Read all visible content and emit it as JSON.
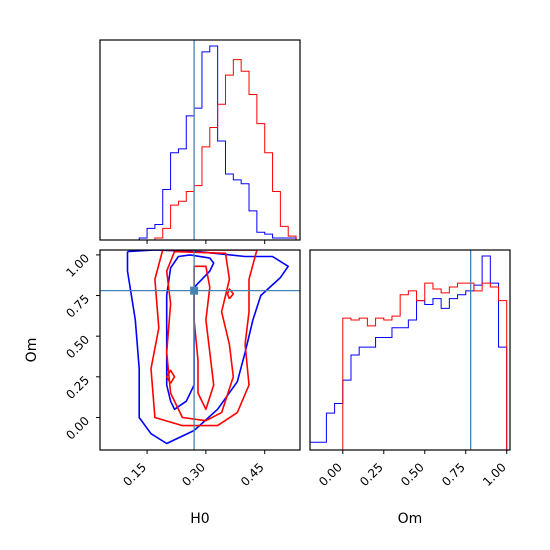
{
  "chart_data": {
    "type": "corner",
    "parameters": [
      "H0",
      "Om"
    ],
    "truth": {
      "H0": 0.27,
      "Om": 0.78
    },
    "colors": {
      "series_a": "#0000ff",
      "series_b": "#ff0000",
      "truth": "#4682b4"
    },
    "hist_H0": {
      "xlim": [
        0.03,
        0.54
      ],
      "bin_edges": [
        0.03,
        0.05,
        0.07,
        0.09,
        0.11,
        0.13,
        0.15,
        0.17,
        0.19,
        0.21,
        0.23,
        0.25,
        0.27,
        0.29,
        0.31,
        0.33,
        0.35,
        0.37,
        0.39,
        0.41,
        0.43,
        0.45,
        0.47,
        0.49,
        0.51,
        0.53
      ],
      "series": [
        {
          "color": "#0000ff",
          "counts": [
            0,
            0,
            0,
            0,
            0,
            0.01,
            0.06,
            0.08,
            0.26,
            0.45,
            0.47,
            0.64,
            0.68,
            0.97,
            1.0,
            0.51,
            0.34,
            0.31,
            0.29,
            0.15,
            0.04,
            0.03,
            0.01,
            0.01,
            0.01
          ]
        },
        {
          "color": "#ff0000",
          "counts": [
            0,
            0,
            0,
            0,
            0,
            0,
            0,
            0.01,
            0.06,
            0.18,
            0.2,
            0.25,
            0.28,
            0.48,
            0.58,
            0.7,
            0.85,
            0.93,
            0.87,
            0.75,
            0.6,
            0.45,
            0.25,
            0.07,
            0.02
          ]
        }
      ]
    },
    "hist_Om": {
      "xlim": [
        -0.2,
        1.02
      ],
      "xticks": [
        "0.00",
        "0.25",
        "0.50",
        "0.75",
        "1.00"
      ],
      "xtick_values": [
        0,
        0.25,
        0.5,
        0.75,
        1.0
      ],
      "bin_edges": [
        -0.2,
        -0.15,
        -0.1,
        -0.05,
        0.0,
        0.05,
        0.1,
        0.15,
        0.2,
        0.25,
        0.3,
        0.35,
        0.4,
        0.45,
        0.5,
        0.55,
        0.6,
        0.65,
        0.7,
        0.75,
        0.8,
        0.85,
        0.9,
        0.95,
        1.0
      ],
      "series": [
        {
          "color": "#0000ff",
          "counts": [
            0.04,
            0.04,
            0.19,
            0.24,
            0.36,
            0.49,
            0.53,
            0.53,
            0.58,
            0.58,
            0.63,
            0.63,
            0.67,
            0.77,
            0.75,
            0.78,
            0.73,
            0.78,
            0.8,
            0.82,
            0.85,
            1.0,
            0.86,
            0.53
          ]
        },
        {
          "color": "#ff0000",
          "counts": [
            0,
            0,
            0,
            0,
            0.68,
            0.67,
            0.68,
            0.64,
            0.68,
            0.67,
            0.69,
            0.8,
            0.82,
            0.77,
            0.86,
            0.83,
            0.81,
            0.84,
            0.86,
            0.86,
            0.82,
            0.86,
            0.84,
            0.77
          ]
        }
      ]
    },
    "contour": {
      "xlabel": "H0",
      "ylabel": "Om",
      "xlim": [
        0.03,
        0.54
      ],
      "ylim": [
        -0.2,
        1.03
      ],
      "xticks": [
        "0.15",
        "0.30",
        "0.45"
      ],
      "xtick_values": [
        0.15,
        0.3,
        0.45
      ],
      "yticks": [
        "0.00",
        "0.25",
        "0.50",
        "0.75",
        "1.00"
      ],
      "ytick_values": [
        0,
        0.25,
        0.5,
        0.75,
        1.0
      ],
      "series": [
        {
          "color": "#0000ff",
          "contours": [
            [
              [
                0.26,
                1.0
              ],
              [
                0.31,
                0.98
              ],
              [
                0.32,
                0.95
              ],
              [
                0.31,
                0.9
              ],
              [
                0.27,
                0.8
              ],
              [
                0.27,
                0.2
              ],
              [
                0.25,
                0.1
              ],
              [
                0.22,
                0.05
              ],
              [
                0.21,
                0.1
              ],
              [
                0.2,
                0.2
              ],
              [
                0.2,
                0.35
              ],
              [
                0.2,
                0.55
              ],
              [
                0.2,
                0.75
              ],
              [
                0.21,
                0.92
              ],
              [
                0.23,
                0.99
              ],
              [
                0.26,
                1.0
              ]
            ],
            [
              [
                0.1,
                1.02
              ],
              [
                0.17,
                1.03
              ],
              [
                0.28,
                1.02
              ],
              [
                0.4,
                0.99
              ],
              [
                0.47,
                0.99
              ],
              [
                0.51,
                0.93
              ],
              [
                0.49,
                0.86
              ],
              [
                0.44,
                0.75
              ],
              [
                0.42,
                0.6
              ],
              [
                0.4,
                0.4
              ],
              [
                0.38,
                0.22
              ],
              [
                0.33,
                0.05
              ],
              [
                0.27,
                -0.08
              ],
              [
                0.2,
                -0.16
              ],
              [
                0.16,
                -0.1
              ],
              [
                0.13,
                0.0
              ],
              [
                0.13,
                0.3
              ],
              [
                0.12,
                0.6
              ],
              [
                0.1,
                0.9
              ],
              [
                0.1,
                1.02
              ]
            ]
          ]
        },
        {
          "color": "#ff0000",
          "contours": [
            [
              [
                0.27,
                0.93
              ],
              [
                0.3,
                0.93
              ],
              [
                0.31,
                0.8
              ],
              [
                0.3,
                0.6
              ],
              [
                0.31,
                0.4
              ],
              [
                0.32,
                0.2
              ],
              [
                0.3,
                0.05
              ],
              [
                0.28,
                0.15
              ],
              [
                0.28,
                0.35
              ],
              [
                0.27,
                0.6
              ],
              [
                0.27,
                0.93
              ]
            ],
            [
              [
                0.22,
                1.02
              ],
              [
                0.35,
                1.01
              ],
              [
                0.36,
                0.85
              ],
              [
                0.34,
                0.65
              ],
              [
                0.36,
                0.45
              ],
              [
                0.37,
                0.25
              ],
              [
                0.34,
                0.03
              ],
              [
                0.3,
                -0.02
              ],
              [
                0.24,
                0.0
              ],
              [
                0.21,
                0.15
              ],
              [
                0.2,
                0.4
              ],
              [
                0.21,
                0.7
              ],
              [
                0.2,
                0.9
              ],
              [
                0.22,
                1.02
              ]
            ],
            [
              [
                0.19,
                1.03
              ],
              [
                0.43,
                1.03
              ],
              [
                0.41,
                0.85
              ],
              [
                0.41,
                0.65
              ],
              [
                0.4,
                0.45
              ],
              [
                0.41,
                0.2
              ],
              [
                0.38,
                0.03
              ],
              [
                0.33,
                -0.05
              ],
              [
                0.24,
                -0.05
              ],
              [
                0.17,
                0.0
              ],
              [
                0.16,
                0.3
              ],
              [
                0.18,
                0.55
              ],
              [
                0.17,
                0.85
              ],
              [
                0.19,
                1.03
              ]
            ],
            [
              [
                0.21,
                0.21
              ],
              [
                0.22,
                0.25
              ],
              [
                0.21,
                0.29
              ],
              [
                0.2,
                0.25
              ],
              [
                0.21,
                0.21
              ]
            ],
            [
              [
                0.36,
                0.73
              ],
              [
                0.37,
                0.76
              ],
              [
                0.36,
                0.79
              ],
              [
                0.355,
                0.76
              ],
              [
                0.36,
                0.73
              ]
            ]
          ]
        }
      ]
    }
  }
}
